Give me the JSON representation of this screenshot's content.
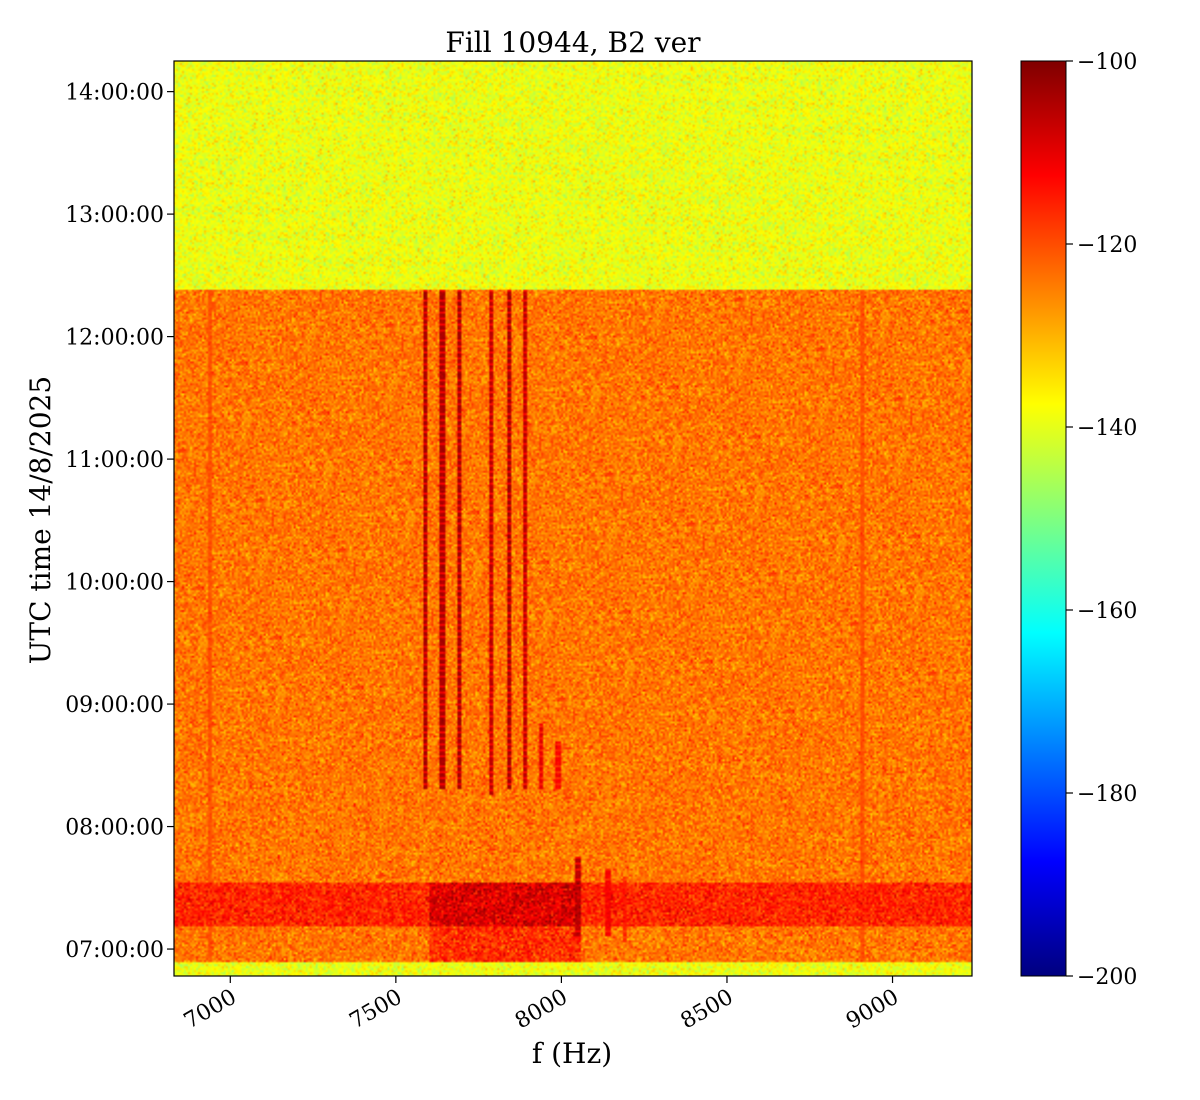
{
  "chart_data": {
    "type": "heatmap",
    "title": "Fill 10944, B2 ver",
    "xlabel": "f (Hz)",
    "ylabel": "UTC time 14/8/2025",
    "x_ticks": [
      7000,
      7500,
      8000,
      8500,
      9000
    ],
    "y_ticks": [
      "07:00:00",
      "08:00:00",
      "09:00:00",
      "10:00:00",
      "11:00:00",
      "12:00:00",
      "13:00:00",
      "14:00:00"
    ],
    "xlim": [
      6830,
      9240
    ],
    "ylim_hours": [
      6.78,
      14.25
    ],
    "colorbar": {
      "colormap": "jet",
      "range": [
        -200,
        -100
      ],
      "ticks": [
        -100,
        -120,
        -140,
        -160,
        -180,
        -200
      ],
      "tick_labels": [
        "−100",
        "−120",
        "−140",
        "−160",
        "−180",
        "−200"
      ]
    },
    "background_levels": [
      {
        "from_hour": 6.78,
        "to_hour": 6.9,
        "level_db": -139
      },
      {
        "from_hour": 6.9,
        "to_hour": 7.18,
        "level_db": -124
      },
      {
        "from_hour": 7.18,
        "to_hour": 7.55,
        "level_db": -116
      },
      {
        "from_hour": 7.55,
        "to_hour": 12.38,
        "level_db": -124
      },
      {
        "from_hour": 12.38,
        "to_hour": 14.25,
        "level_db": -139
      }
    ],
    "lines": [
      {
        "f_hz": 7590,
        "t_start": 8.3,
        "t_end": 12.38,
        "level_db": -104
      },
      {
        "f_hz": 7640,
        "t_start": 8.3,
        "t_end": 12.38,
        "level_db": -104
      },
      {
        "f_hz": 7690,
        "t_start": 8.3,
        "t_end": 12.38,
        "level_db": -104
      },
      {
        "f_hz": 7790,
        "t_start": 8.25,
        "t_end": 12.38,
        "level_db": -106
      },
      {
        "f_hz": 7840,
        "t_start": 8.3,
        "t_end": 12.38,
        "level_db": -104
      },
      {
        "f_hz": 7890,
        "t_start": 8.3,
        "t_end": 12.38,
        "level_db": -106
      },
      {
        "f_hz": 7940,
        "t_start": 8.3,
        "t_end": 8.85,
        "level_db": -110
      },
      {
        "f_hz": 7990,
        "t_start": 8.3,
        "t_end": 8.7,
        "level_db": -112
      },
      {
        "f_hz": 8050,
        "t_start": 7.1,
        "t_end": 7.75,
        "level_db": -106
      },
      {
        "f_hz": 8140,
        "t_start": 7.1,
        "t_end": 7.65,
        "level_db": -112
      },
      {
        "f_hz": 8190,
        "t_start": 7.05,
        "t_end": 7.6,
        "level_db": -116
      },
      {
        "f_hz": 6940,
        "t_start": 6.9,
        "t_end": 12.38,
        "level_db": -120
      },
      {
        "f_hz": 8910,
        "t_start": 6.9,
        "t_end": 12.38,
        "level_db": -120
      }
    ]
  }
}
